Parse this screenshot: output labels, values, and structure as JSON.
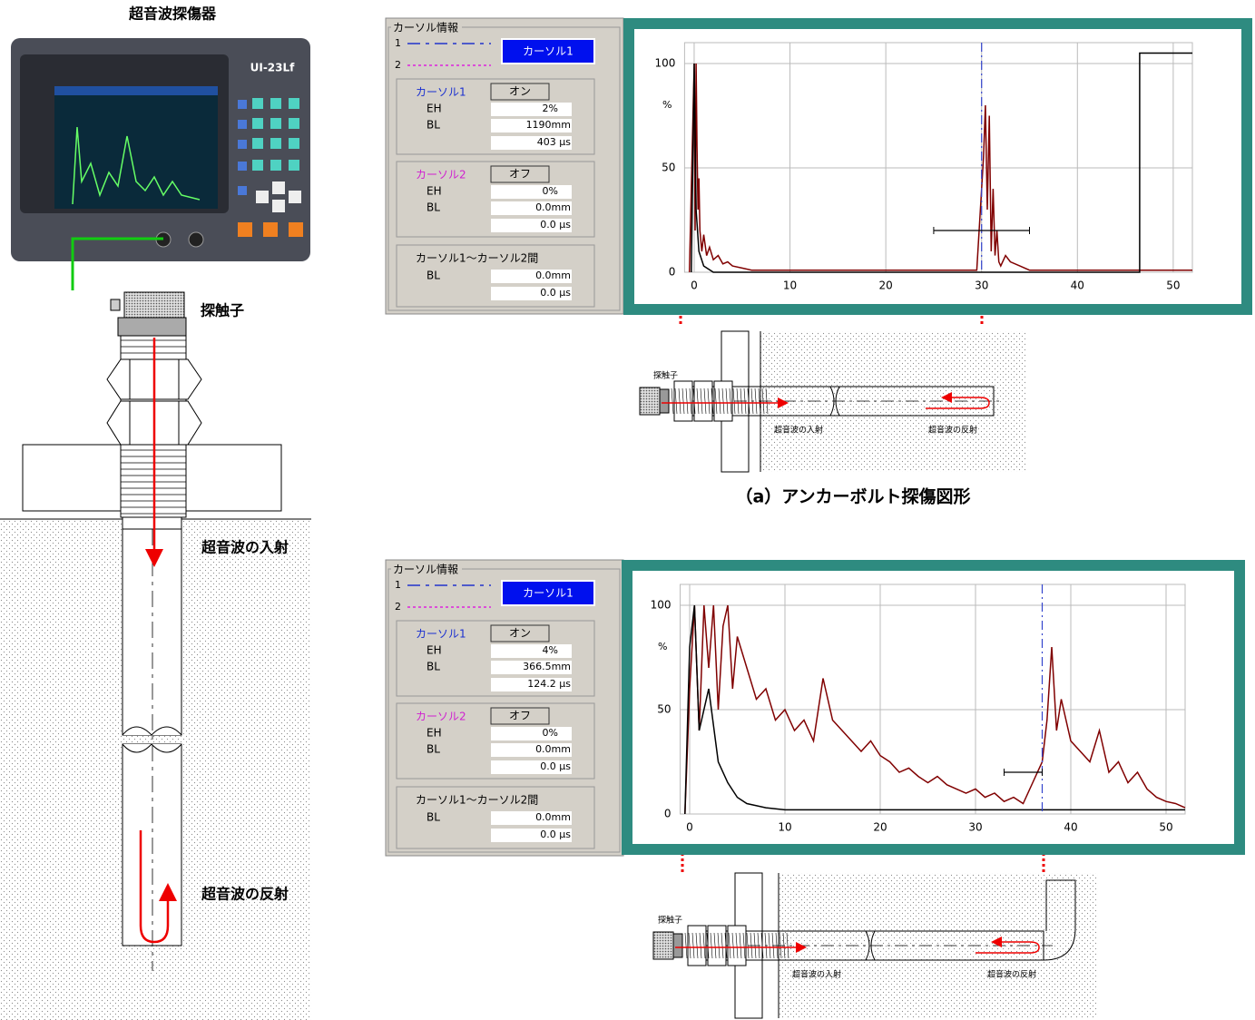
{
  "device": {
    "title": "超音波探傷器",
    "model": "UI-23Lf"
  },
  "left_diagram": {
    "probe": "探触子",
    "incident": "超音波の入射",
    "reflection": "超音波の反射"
  },
  "cursor_panels": [
    {
      "group_title": "カーソル情報",
      "line_labels": [
        "1",
        "2"
      ],
      "button": "カーソル1",
      "cursor1": {
        "label": "カーソル1",
        "toggle": "オン",
        "eh_label": "EH",
        "eh": "2%",
        "bl_label": "BL",
        "bl": "1190mm",
        "time": "403 μs"
      },
      "cursor2": {
        "label": "カーソル2",
        "toggle": "オフ",
        "eh_label": "EH",
        "eh": "0%",
        "bl_label": "BL",
        "bl": "0.0mm",
        "time": "0.0 μs"
      },
      "between": {
        "label": "カーソル1～カーソル2間",
        "bl_label": "BL",
        "bl": "0.0mm",
        "time": "0.0 μs"
      }
    },
    {
      "group_title": "カーソル情報",
      "line_labels": [
        "1",
        "2"
      ],
      "button": "カーソル1",
      "cursor1": {
        "label": "カーソル1",
        "toggle": "オン",
        "eh_label": "EH",
        "eh": "4%",
        "bl_label": "BL",
        "bl": "366.5mm",
        "time": "124.2 μs"
      },
      "cursor2": {
        "label": "カーソル2",
        "toggle": "オフ",
        "eh_label": "EH",
        "eh": "0%",
        "bl_label": "BL",
        "bl": "0.0mm",
        "time": "0.0 μs"
      },
      "between": {
        "label": "カーソル1～カーソル2間",
        "bl_label": "BL",
        "bl": "0.0mm",
        "time": "0.0 μs"
      }
    }
  ],
  "charts": [
    {
      "type": "line",
      "y_unit": "%",
      "xlim": [
        -1,
        52
      ],
      "ylim": [
        0,
        110
      ],
      "xticks": [
        0,
        10,
        20,
        30,
        40,
        50
      ],
      "yticks": [
        0,
        50,
        100
      ],
      "grid": true,
      "cursor": 30,
      "cursor_color": "#3344cc",
      "gate": {
        "start": 25,
        "end": 35,
        "level": 20
      },
      "series": [
        {
          "color": "#800000",
          "x": [
            -0.5,
            0,
            0.1,
            0.2,
            0.3,
            0.4,
            0.5,
            0.6,
            0.8,
            1,
            1.3,
            1.6,
            2,
            2.5,
            3,
            3.5,
            4,
            5,
            6,
            10,
            20,
            28,
            29.5,
            30.2,
            30.4,
            30.6,
            30.8,
            31,
            31.2,
            31.4,
            31.6,
            31.8,
            32,
            32.5,
            33,
            34,
            35,
            40,
            47,
            50,
            52
          ],
          "y": [
            0,
            100,
            20,
            100,
            60,
            30,
            45,
            20,
            10,
            18,
            8,
            12,
            6,
            8,
            4,
            5,
            3,
            2,
            1,
            1,
            1,
            1,
            1,
            55,
            80,
            30,
            75,
            10,
            40,
            8,
            20,
            5,
            3,
            8,
            5,
            3,
            1,
            1,
            1,
            1,
            1
          ]
        },
        {
          "color": "#000000",
          "x": [
            -0.3,
            0,
            0.2,
            0.5,
            1,
            2,
            46.5,
            46.5,
            52
          ],
          "y": [
            0,
            100,
            30,
            10,
            3,
            0,
            0,
            105,
            105
          ]
        }
      ]
    },
    {
      "type": "line",
      "y_unit": "%",
      "xlim": [
        -1,
        52
      ],
      "ylim": [
        0,
        110
      ],
      "xticks": [
        0,
        10,
        20,
        30,
        40,
        50
      ],
      "yticks": [
        0,
        50,
        100
      ],
      "grid": true,
      "cursor": 37,
      "cursor_color": "#3344cc",
      "gate": {
        "start": 33,
        "end": 37,
        "level": 20
      },
      "series": [
        {
          "color": "#800000",
          "x": [
            -0.5,
            0,
            0.5,
            1,
            1.5,
            2,
            2.5,
            3,
            3.5,
            4,
            4.5,
            5,
            6,
            7,
            8,
            9,
            10,
            11,
            12,
            13,
            14,
            15,
            16,
            17,
            18,
            19,
            20,
            21,
            22,
            23,
            24,
            25,
            26,
            27,
            28,
            29,
            30,
            31,
            32,
            33,
            34,
            35,
            36,
            37,
            37.5,
            38,
            38.5,
            39,
            40,
            41,
            42,
            43,
            44,
            45,
            46,
            47,
            48,
            49,
            50,
            51,
            52
          ],
          "y": [
            0,
            60,
            100,
            40,
            100,
            70,
            100,
            50,
            90,
            100,
            60,
            85,
            70,
            55,
            60,
            45,
            50,
            40,
            45,
            35,
            65,
            45,
            40,
            35,
            30,
            35,
            28,
            25,
            20,
            22,
            18,
            15,
            18,
            14,
            12,
            10,
            12,
            8,
            10,
            6,
            8,
            5,
            15,
            25,
            45,
            80,
            40,
            55,
            35,
            30,
            25,
            40,
            20,
            25,
            15,
            20,
            12,
            8,
            6,
            5,
            3
          ]
        },
        {
          "color": "#000000",
          "x": [
            -0.5,
            0,
            0.5,
            1,
            2,
            3,
            4,
            5,
            6,
            8,
            10,
            20,
            30,
            40,
            52
          ],
          "y": [
            0,
            80,
            100,
            40,
            60,
            25,
            15,
            8,
            5,
            3,
            2,
            2,
            2,
            2,
            2
          ]
        }
      ]
    }
  ],
  "bolt_diagrams": [
    {
      "probe": "探触子",
      "incident": "超音波の入射",
      "reflection": "超音波の反射"
    },
    {
      "probe": "探触子",
      "incident": "超音波の入射",
      "reflection": "超音波の反射"
    }
  ],
  "caption": "（a）アンカーボルト探傷図形"
}
